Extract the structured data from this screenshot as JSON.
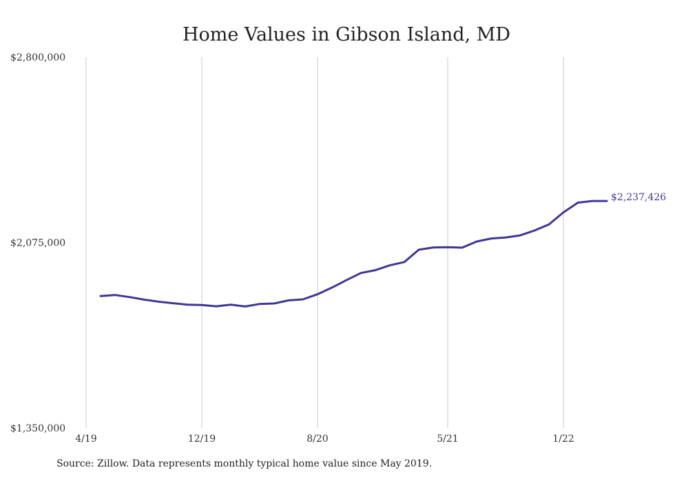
{
  "chart_data": {
    "type": "line",
    "title": "Home Values in Gibson Island, MD",
    "source_note": "Source: Zillow. Data represents monthly typical home value since May 2019.",
    "y_tick_labels": [
      "$2,800,000",
      "$2,075,000",
      "$1,350,000"
    ],
    "y_ticks": [
      2800000,
      2075000,
      1350000
    ],
    "ylim": [
      1350000,
      2800000
    ],
    "x_tick_labels": [
      "4/19",
      "12/19",
      "8/20",
      "5/21",
      "1/22"
    ],
    "x_ticks": [
      "2019-04",
      "2019-12",
      "2020-08",
      "2021-05",
      "2022-01"
    ],
    "grid": "vertical",
    "line_color": "#3f3797",
    "end_label": "$2,237,426",
    "series": [
      {
        "x": [
          "2019-05",
          "2019-06",
          "2019-07",
          "2019-08",
          "2019-09",
          "2019-10",
          "2019-11",
          "2019-12",
          "2020-01",
          "2020-02",
          "2020-03",
          "2020-04",
          "2020-05",
          "2020-06",
          "2020-07",
          "2020-08",
          "2020-09",
          "2020-10",
          "2020-11",
          "2020-12",
          "2021-01",
          "2021-02",
          "2021-03",
          "2021-04",
          "2021-05",
          "2021-06",
          "2021-07",
          "2021-08",
          "2021-09",
          "2021-10",
          "2021-11",
          "2021-12",
          "2022-01",
          "2022-02",
          "2022-03",
          "2022-04"
        ],
        "values": [
          1866000,
          1870000,
          1862000,
          1852000,
          1844000,
          1838000,
          1832000,
          1831000,
          1826000,
          1832000,
          1825000,
          1835000,
          1837000,
          1849000,
          1853000,
          1873000,
          1899000,
          1928000,
          1956000,
          1967000,
          1986000,
          1999000,
          2047000,
          2056000,
          2057000,
          2055000,
          2079000,
          2091000,
          2095000,
          2103000,
          2122000,
          2146000,
          2193000,
          2231000,
          2237426,
          2237426
        ]
      }
    ]
  }
}
